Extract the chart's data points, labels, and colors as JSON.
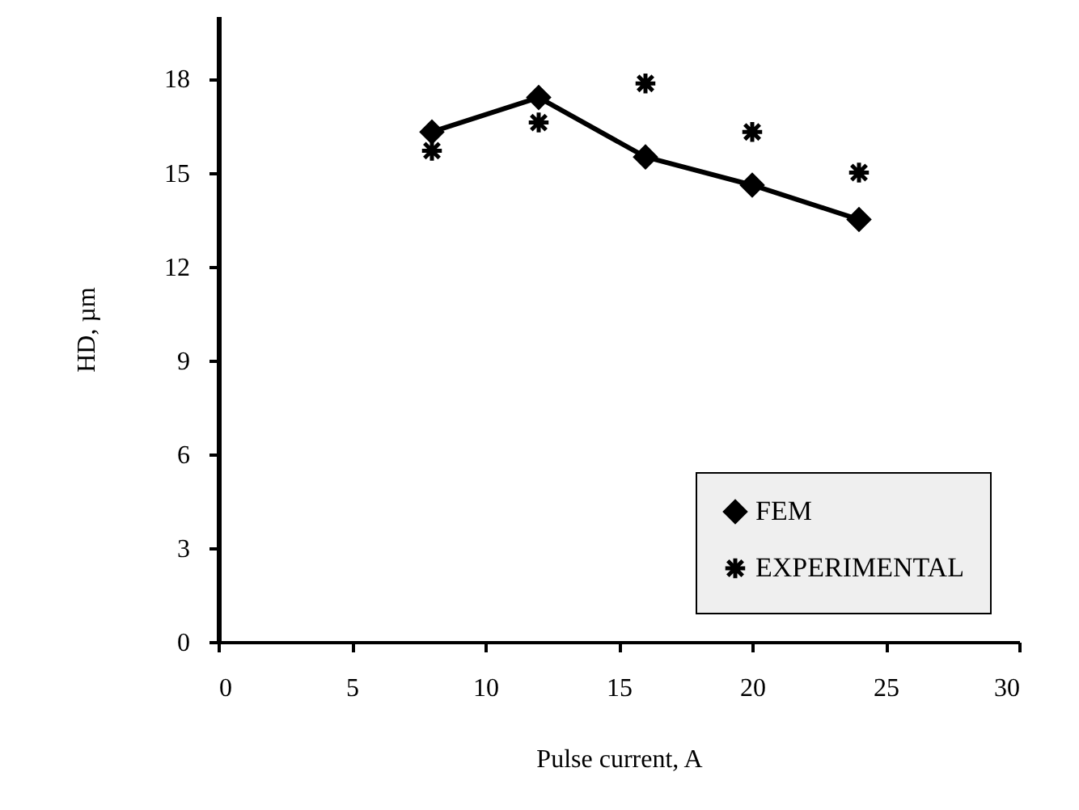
{
  "chart_data": {
    "type": "line",
    "xlabel": "Pulse current, A",
    "ylabel": "HD, µm",
    "xlim": [
      0,
      30
    ],
    "xticks": [
      0,
      5,
      10,
      15,
      20,
      25,
      30
    ],
    "ylim": [
      0,
      20
    ],
    "yticks": [
      0,
      3,
      6,
      9,
      12,
      15,
      18
    ],
    "grid": false,
    "legend": "bottom right",
    "x": [
      8,
      12,
      16,
      20,
      24
    ],
    "series": [
      {
        "name": "FEM",
        "color": "#000000",
        "marker": "diamond",
        "values": [
          16.3,
          17.4,
          15.5,
          14.6,
          13.5
        ]
      },
      {
        "name": "EXPERIMENTAL",
        "type": "scatter",
        "color": "#000000",
        "marker": "cross",
        "values": [
          15.7,
          16.6,
          17.85,
          16.3,
          15.0
        ]
      }
    ]
  }
}
